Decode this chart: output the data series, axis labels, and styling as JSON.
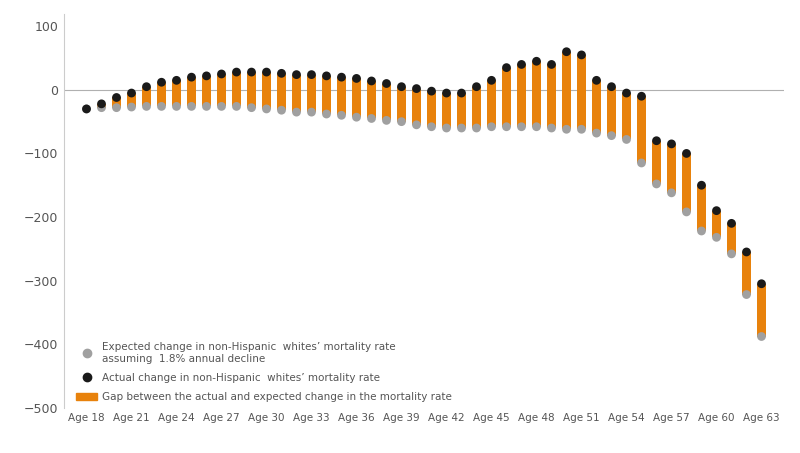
{
  "ages": [
    18,
    19,
    20,
    21,
    22,
    23,
    24,
    25,
    26,
    27,
    28,
    29,
    30,
    31,
    32,
    33,
    34,
    35,
    36,
    37,
    38,
    39,
    40,
    41,
    42,
    43,
    44,
    45,
    46,
    47,
    48,
    49,
    50,
    51,
    52,
    53,
    54,
    55,
    56,
    57,
    58,
    59,
    60,
    61,
    62,
    63
  ],
  "actual": [
    -30,
    -22,
    -12,
    -5,
    5,
    12,
    15,
    20,
    22,
    25,
    28,
    28,
    28,
    26,
    24,
    24,
    22,
    20,
    18,
    14,
    10,
    5,
    2,
    -2,
    -5,
    -5,
    5,
    15,
    35,
    40,
    45,
    40,
    60,
    55,
    15,
    5,
    -5,
    -10,
    -80,
    -85,
    -100,
    -150,
    -190,
    -210,
    -255,
    -305
  ],
  "expected": [
    -30,
    -28,
    -28,
    -27,
    -26,
    -26,
    -26,
    -26,
    -26,
    -26,
    -26,
    -28,
    -30,
    -32,
    -35,
    -35,
    -38,
    -40,
    -43,
    -45,
    -48,
    -50,
    -55,
    -58,
    -60,
    -60,
    -60,
    -58,
    -58,
    -58,
    -58,
    -60,
    -62,
    -62,
    -68,
    -72,
    -78,
    -115,
    -148,
    -162,
    -192,
    -222,
    -232,
    -258,
    -322,
    -388
  ],
  "bar_color": "#E8820C",
  "actual_color": "#1a1a1a",
  "expected_color": "#a0a0a0",
  "bar_width": 0.6,
  "ylim": [
    -500,
    120
  ],
  "yticks": [
    100,
    0,
    -100,
    -200,
    -300,
    -400,
    -500
  ],
  "xlabel_ticks": [
    18,
    21,
    24,
    27,
    30,
    33,
    36,
    39,
    42,
    45,
    48,
    51,
    54,
    57,
    60,
    63
  ],
  "xlabel_labels": [
    "Age 18",
    "Age 21",
    "Age 24",
    "Age 27",
    "Age 30",
    "Age 33",
    "Age 36",
    "Age 39",
    "Age 42",
    "Age 45",
    "Age 48",
    "Age 51",
    "Age 54",
    "Age 57",
    "Age 60",
    "Age 63"
  ],
  "legend_expected_label": "Expected change in non-Hispanic  whites’ mortality rate\nassuming  1.8% annual decline",
  "legend_actual_label": "Actual change in non-Hispanic  whites’ mortality rate",
  "legend_gap_label": "Gap between the actual and expected change in the mortality rate",
  "hline_y": 0,
  "background_color": "#ffffff",
  "dot_size": 40,
  "figwidth": 8.0,
  "figheight": 4.53,
  "dpi": 100
}
